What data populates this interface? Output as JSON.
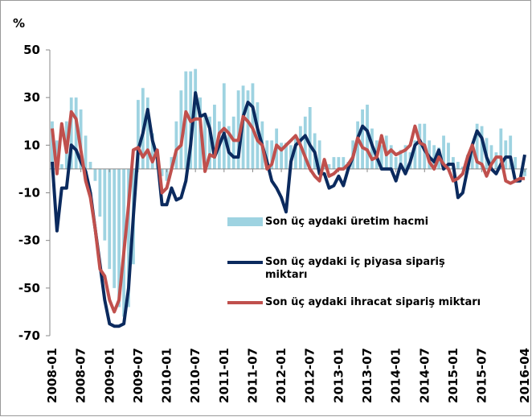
{
  "chart_data": {
    "type": "bar_line",
    "y_axis_label": "%",
    "categories": [
      "2008-01",
      null,
      null,
      null,
      null,
      null,
      "2008-07",
      null,
      null,
      null,
      null,
      null,
      "2009-01",
      null,
      null,
      null,
      null,
      null,
      "2009-07",
      null,
      null,
      null,
      null,
      null,
      "2010-01",
      null,
      null,
      null,
      null,
      null,
      "2010-07",
      null,
      null,
      null,
      null,
      null,
      "2011-01",
      null,
      null,
      null,
      null,
      null,
      "2011-07",
      null,
      null,
      null,
      null,
      null,
      "2012-01",
      null,
      null,
      null,
      null,
      null,
      "2012-07",
      null,
      null,
      null,
      null,
      null,
      "2013-01",
      null,
      null,
      null,
      null,
      null,
      "2013-07",
      null,
      null,
      null,
      null,
      null,
      "2014-01",
      null,
      null,
      null,
      null,
      null,
      "2014-07",
      null,
      null,
      null,
      null,
      null,
      "2015-01",
      null,
      null,
      null,
      null,
      null,
      "2015-07",
      null,
      null,
      null,
      null,
      null,
      null,
      null,
      null,
      "2016-04"
    ],
    "series": [
      {
        "name": "Son üç aydaki üretim hacmi",
        "kind": "bar",
        "color": "#9ed3e1",
        "values": [
          20,
          12,
          2,
          20,
          30,
          30,
          25,
          14,
          3,
          -5,
          -20,
          -30,
          -42,
          -50,
          -58,
          -62,
          -58,
          -40,
          29,
          34,
          30,
          15,
          5,
          -3,
          -5,
          5,
          20,
          33,
          41,
          41,
          42,
          30,
          23,
          22,
          27,
          20,
          36,
          18,
          22,
          33,
          35,
          33,
          36,
          28,
          20,
          12,
          12,
          17,
          11,
          11,
          10,
          14,
          18,
          22,
          26,
          15,
          12,
          3,
          2,
          5,
          5,
          5,
          3,
          12,
          20,
          25,
          27,
          17,
          12,
          10,
          14,
          10,
          5,
          8,
          10,
          7,
          12,
          19,
          19,
          12,
          10,
          9,
          14,
          11,
          5,
          3,
          1,
          6,
          10,
          19,
          18,
          13,
          10,
          7,
          17,
          12,
          14,
          5,
          0,
          -3
        ]
      },
      {
        "name": "Son üç aydaki iç piyasa sipariş miktarı",
        "kind": "line",
        "color": "#0b2a5e",
        "values": [
          3,
          -26,
          -8,
          -8,
          10,
          8,
          3,
          -1,
          -10,
          -25,
          -40,
          -55,
          -65,
          -66,
          -66,
          -65,
          -50,
          -20,
          8,
          15,
          25,
          12,
          5,
          -15,
          -15,
          -8,
          -13,
          -12,
          -5,
          10,
          32,
          22,
          23,
          17,
          5,
          10,
          15,
          7,
          5,
          5,
          22,
          28,
          26,
          17,
          10,
          3,
          -5,
          -8,
          -12,
          -18,
          3,
          10,
          12,
          14,
          10,
          7,
          -2,
          -2,
          -8,
          -7,
          -3,
          -7,
          0,
          5,
          13,
          18,
          16,
          10,
          5,
          0,
          0,
          0,
          -5,
          2,
          -2,
          3,
          10,
          12,
          8,
          5,
          3,
          8,
          0,
          2,
          2,
          -12,
          -10,
          0,
          10,
          16,
          13,
          5,
          0,
          -2,
          2,
          5,
          5,
          -5,
          -5,
          6
        ]
      },
      {
        "name": "Son üç aydaki ihracat sipariş miktarı",
        "kind": "line",
        "color": "#c0504d",
        "values": [
          17,
          -2,
          19,
          7,
          24,
          21,
          8,
          -5,
          -12,
          -25,
          -42,
          -45,
          -55,
          -60,
          -55,
          -35,
          -15,
          8,
          9,
          5,
          8,
          3,
          8,
          -10,
          -8,
          0,
          8,
          10,
          24,
          20,
          21,
          21,
          -1,
          6,
          5,
          15,
          17,
          15,
          12,
          12,
          22,
          20,
          17,
          12,
          10,
          0,
          2,
          10,
          8,
          10,
          12,
          14,
          10,
          5,
          0,
          -3,
          -5,
          4,
          -3,
          -2,
          0,
          0,
          2,
          5,
          13,
          9,
          8,
          4,
          5,
          14,
          6,
          8,
          6,
          7,
          8,
          10,
          18,
          11,
          10,
          3,
          0,
          5,
          2,
          0,
          -5,
          -4,
          -2,
          5,
          10,
          3,
          2,
          -3,
          2,
          5,
          5,
          -5,
          -6,
          -5,
          -4,
          -4
        ]
      }
    ],
    "ylim": [
      -70,
      50
    ],
    "yticks": [
      -70,
      -50,
      -30,
      -10,
      10,
      30,
      50
    ]
  }
}
